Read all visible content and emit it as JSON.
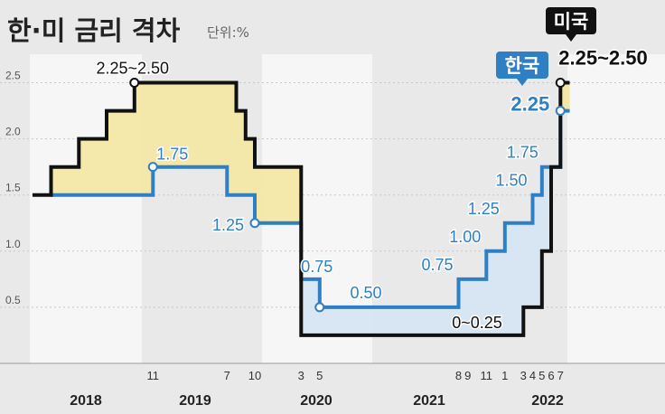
{
  "header": {
    "title": "한·미 금리 격차",
    "unit": "단위:%"
  },
  "chart_data": {
    "type": "line",
    "step": true,
    "ylim": [
      0,
      2.6
    ],
    "yticks": [
      "0.5",
      "1.0",
      "1.5",
      "2.0",
      "2.5"
    ],
    "ytick_values": [
      0.5,
      1.0,
      1.5,
      2.0,
      2.5
    ],
    "x_timeline": {
      "start": "2017-10",
      "end": "2022-08"
    },
    "years": [
      "2018",
      "2019",
      "2020",
      "2021",
      "2022"
    ],
    "months": [
      {
        "label": "11",
        "date": "2018-11"
      },
      {
        "label": "7",
        "date": "2019-07"
      },
      {
        "label": "10",
        "date": "2019-10"
      },
      {
        "label": "3",
        "date": "2020-03"
      },
      {
        "label": "5",
        "date": "2020-05"
      },
      {
        "label": "8",
        "date": "2021-08"
      },
      {
        "label": "9",
        "date": "2021-09"
      },
      {
        "label": "11",
        "date": "2021-11"
      },
      {
        "label": "1",
        "date": "2022-01"
      },
      {
        "label": "3",
        "date": "2022-03"
      },
      {
        "label": "4",
        "date": "2022-04"
      },
      {
        "label": "5",
        "date": "2022-05"
      },
      {
        "label": "6",
        "date": "2022-06"
      },
      {
        "label": "7",
        "date": "2022-07"
      }
    ],
    "series": [
      {
        "name": "미국",
        "color": "#111111",
        "points": [
          [
            "2017-10",
            1.5
          ],
          [
            "2017-12",
            1.75
          ],
          [
            "2018-03",
            2.0
          ],
          [
            "2018-06",
            2.25
          ],
          [
            "2018-09",
            2.5
          ],
          [
            "2019-08",
            2.25
          ],
          [
            "2019-09",
            2.0
          ],
          [
            "2019-10",
            1.75
          ],
          [
            "2020-03",
            0.25
          ],
          [
            "2022-03",
            0.5
          ],
          [
            "2022-05",
            1.0
          ],
          [
            "2022-06",
            1.75
          ],
          [
            "2022-07",
            2.5
          ],
          [
            "2022-08",
            2.5
          ]
        ]
      },
      {
        "name": "한국",
        "color": "#2f7fc4",
        "points": [
          [
            "2017-12",
            1.5
          ],
          [
            "2018-11",
            1.75
          ],
          [
            "2019-07",
            1.5
          ],
          [
            "2019-10",
            1.25
          ],
          [
            "2020-03",
            0.75
          ],
          [
            "2020-05",
            0.5
          ],
          [
            "2021-08",
            0.75
          ],
          [
            "2021-11",
            1.0
          ],
          [
            "2022-01",
            1.25
          ],
          [
            "2022-04",
            1.5
          ],
          [
            "2022-05",
            1.75
          ],
          [
            "2022-07",
            2.25
          ],
          [
            "2022-08",
            2.25
          ]
        ]
      }
    ],
    "annotations": [
      {
        "text": "2.25~2.50",
        "series": "미국",
        "date": "2018-09",
        "value": 2.5
      },
      {
        "text": "1.75",
        "series": "한국",
        "date": "2018-11",
        "value": 1.75
      },
      {
        "text": "1.25",
        "series": "한국",
        "date": "2019-10",
        "value": 1.25
      },
      {
        "text": "0.75",
        "series": "한국",
        "date": "2020-03",
        "value": 0.75
      },
      {
        "text": "0.50",
        "series": "한국",
        "date": "2020-10",
        "value": 0.5
      },
      {
        "text": "0.75",
        "series": "한국",
        "date": "2021-08",
        "value": 0.75
      },
      {
        "text": "1.00",
        "series": "한국",
        "date": "2021-11",
        "value": 1.0
      },
      {
        "text": "1.25",
        "series": "한국",
        "date": "2022-01",
        "value": 1.25
      },
      {
        "text": "1.50",
        "series": "한국",
        "date": "2022-04",
        "value": 1.5
      },
      {
        "text": "1.75",
        "series": "한국",
        "date": "2022-05",
        "value": 1.75
      },
      {
        "text": "2.25",
        "series": "한국",
        "date": "2022-07",
        "value": 2.25
      },
      {
        "text": "0~0.25",
        "series": "미국",
        "date": "2021-10",
        "value": 0.25
      },
      {
        "text": "2.25~2.50",
        "series": "미국",
        "date": "2022-07",
        "value": 2.5
      }
    ],
    "callouts": [
      {
        "text": "미국",
        "color": "#111111"
      },
      {
        "text": "한국",
        "color": "#2f7fc4"
      }
    ]
  }
}
